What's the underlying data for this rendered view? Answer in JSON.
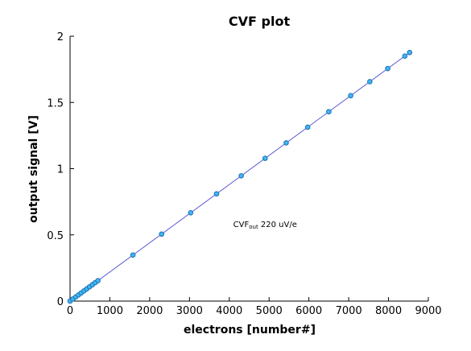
{
  "chart_data": {
    "type": "scatter",
    "title": "CVF plot",
    "xlabel": "electrons [number#]",
    "ylabel": "output signal [V]",
    "xlim": [
      0,
      9000
    ],
    "ylim": [
      0,
      2
    ],
    "xticks": [
      0,
      1000,
      2000,
      3000,
      4000,
      5000,
      6000,
      7000,
      8000,
      9000
    ],
    "yticks": [
      0,
      0.5,
      1,
      1.5,
      2
    ],
    "ytick_labels": [
      "0",
      "0.5",
      "1",
      "1.5",
      "2"
    ],
    "grid": false,
    "annotation": {
      "main": "CVF",
      "sub": "out",
      "rest": " 220 uV/e",
      "x": 4900,
      "y": 0.56
    },
    "fit_line": {
      "slope": 0.00022,
      "intercept": 0
    },
    "series": [
      {
        "x": [
          0,
          70,
          140,
          210,
          280,
          350,
          420,
          490,
          560,
          630,
          700,
          1580,
          2300,
          3030,
          3680,
          4300,
          4900,
          5430,
          5970,
          6500,
          7050,
          7530,
          7980,
          8410,
          8530
        ],
        "y": [
          0,
          0.0154,
          0.0308,
          0.0462,
          0.0616,
          0.077,
          0.0924,
          0.1078,
          0.1232,
          0.1386,
          0.154,
          0.348,
          0.506,
          0.667,
          0.81,
          0.946,
          1.078,
          1.195,
          1.313,
          1.43,
          1.551,
          1.657,
          1.756,
          1.85,
          1.877
        ],
        "color": "#3fb6f2",
        "line_color": "#5b5bd6"
      }
    ]
  }
}
